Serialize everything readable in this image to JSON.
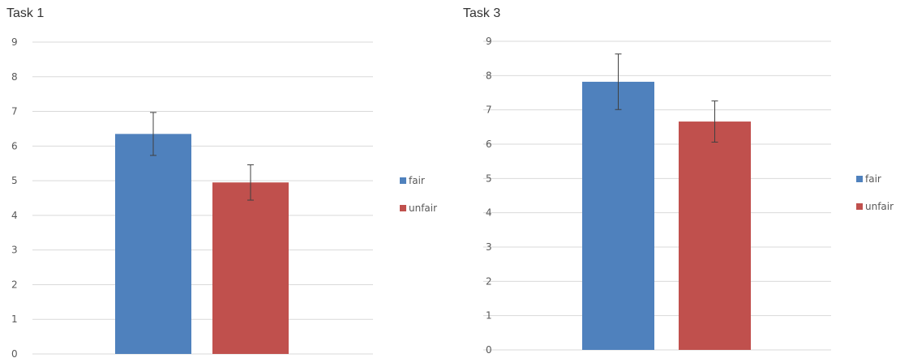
{
  "chart_data": [
    {
      "type": "bar",
      "title": "Task 1",
      "categories": [
        ""
      ],
      "series": [
        {
          "name": "fair",
          "values": [
            6.35
          ],
          "error": [
            0.62
          ],
          "color": "#4f81bd"
        },
        {
          "name": "unfair",
          "values": [
            4.95
          ],
          "error": [
            0.51
          ],
          "color": "#c0504d"
        }
      ],
      "ylim": [
        0,
        9
      ],
      "yticks": [
        "0",
        "1",
        "2",
        "3",
        "4",
        "5",
        "6",
        "7",
        "8",
        "9"
      ],
      "grid": true,
      "legend": "right"
    },
    {
      "type": "bar",
      "title": "Task 3",
      "categories": [
        ""
      ],
      "series": [
        {
          "name": "fair",
          "values": [
            7.82
          ],
          "error": [
            0.81
          ],
          "color": "#4f81bd"
        },
        {
          "name": "unfair",
          "values": [
            6.66
          ],
          "error": [
            0.6
          ],
          "color": "#c0504d"
        }
      ],
      "ylim": [
        0,
        9
      ],
      "yticks": [
        "0",
        "1",
        "2",
        "3",
        "4",
        "5",
        "6",
        "7",
        "8",
        "9"
      ],
      "grid": true,
      "legend": "right"
    }
  ]
}
